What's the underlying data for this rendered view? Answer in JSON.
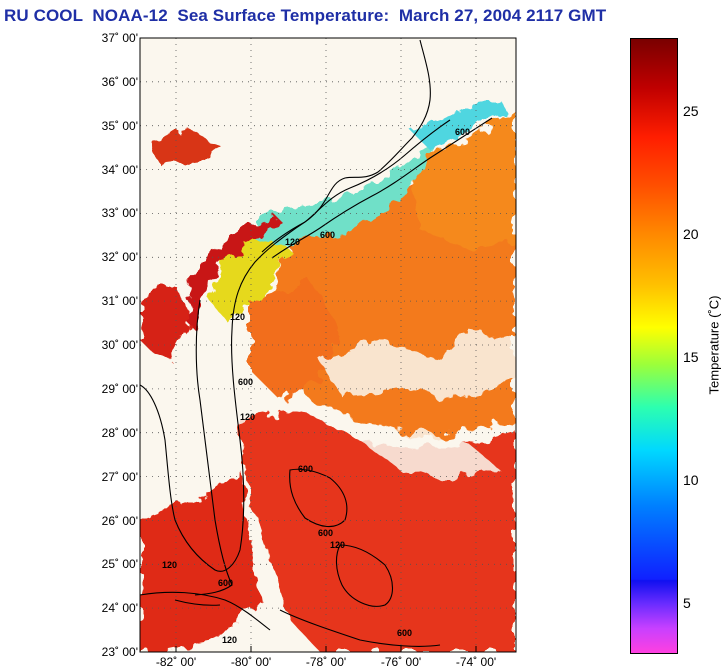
{
  "title": "RU COOL  NOAA-12  Sea Surface Temperature:  March 27, 2004 2117 GMT",
  "map": {
    "lat_labels": [
      "37˚ 00'",
      "36˚ 00'",
      "35˚ 00'",
      "34˚ 00'",
      "33˚ 00'",
      "32˚ 00'",
      "31˚ 00'",
      "30˚ 00'",
      "29˚ 00'",
      "28˚ 00'",
      "27˚ 00'",
      "26˚ 00'",
      "25˚ 00'",
      "24˚ 00'",
      "23˚ 00'"
    ],
    "lon_labels": [
      "-82˚ 00'",
      "-80˚ 00'",
      "-78˚ 00'",
      "-76˚ 00'",
      "-74˚ 00'"
    ],
    "isobath_labels": [
      "600",
      "120",
      "600",
      "120",
      "600",
      "120",
      "600",
      "600",
      "120",
      "600",
      "120",
      "120",
      "600"
    ],
    "colors": {
      "land": "#fbf7ee",
      "coast": "#000000",
      "background": "#ffffff"
    }
  },
  "colorbar": {
    "label": "Temperature (˚C)",
    "ticks": [
      "25",
      "20",
      "15",
      "10",
      "5"
    ],
    "range": [
      3,
      28
    ]
  }
}
